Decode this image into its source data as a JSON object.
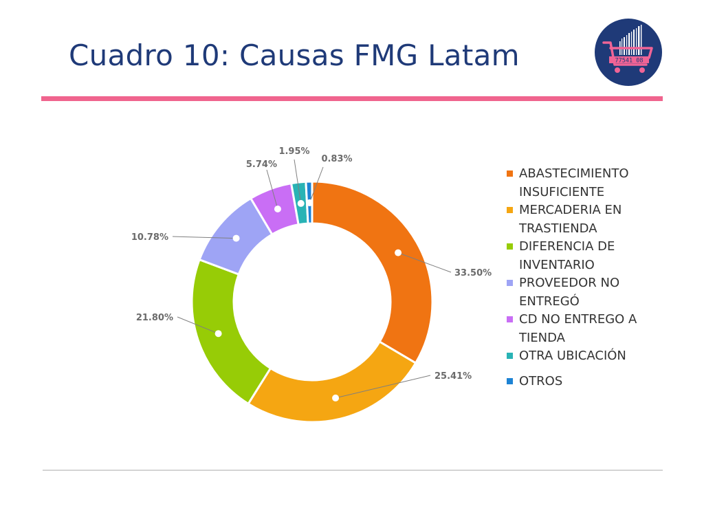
{
  "slide": {
    "title": "Cuadro 10: Causas FMG Latam"
  },
  "logo": {
    "icon": "shopping-cart-barcode-icon",
    "barcode_text": "77541 08",
    "colors": {
      "circle": "#1f3a78",
      "cart": "#f06496"
    }
  },
  "chart_data": {
    "type": "pie",
    "variant": "donut",
    "title": "",
    "legend_placement": "right",
    "series": [
      {
        "name": "ABASTECIMIENTO INSUFICIENTE",
        "value": 33.5,
        "label": "33.50%",
        "color": "#f07412"
      },
      {
        "name": "MERCADERIA EN TRASTIENDA",
        "value": 25.41,
        "label": "25.41%",
        "color": "#f5a612"
      },
      {
        "name": "DIFERENCIA DE INVENTARIO",
        "value": 21.8,
        "label": "21.80%",
        "color": "#97cc06"
      },
      {
        "name": "PROVEEDOR NO ENTREGÓ",
        "value": 10.78,
        "label": "10.78%",
        "color": "#9ea4f5"
      },
      {
        "name": "CD NO ENTREGO A TIENDA",
        "value": 5.74,
        "label": "5.74%",
        "color": "#c96ef5"
      },
      {
        "name": "OTRA UBICACIÓN",
        "value": 1.95,
        "label": "1.95%",
        "color": "#29b3b5"
      },
      {
        "name": "OTROS",
        "value": 0.83,
        "label": "0.83%",
        "color": "#1d83d4"
      }
    ]
  }
}
